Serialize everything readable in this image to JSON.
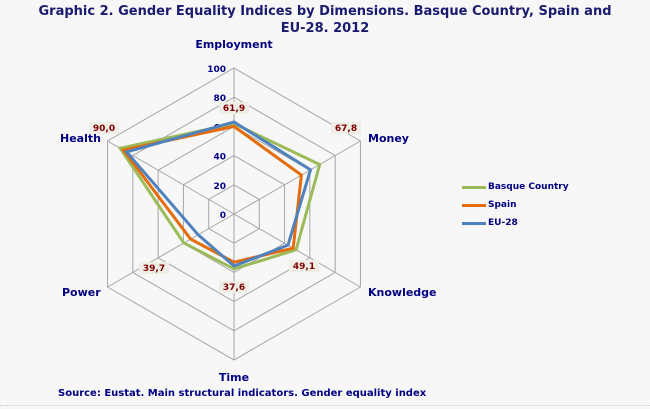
{
  "title": "Graphic 2. Gender Equality Indices by Dimensions. Basque Country, Spain and EU-28. 2012",
  "title_line1": "Graphic 2. Gender Equality Indices by Dimensions. Basque Country, Spain and",
  "title_line2": "EU-28. 2012",
  "source": "Source: Eustat. Main structural indicators. Gender equality index",
  "legend": [
    {
      "label": "Basque Country",
      "color": "#9bbb59"
    },
    {
      "label": "Spain",
      "color": "#e46c0a"
    },
    {
      "label": "EU-28",
      "color": "#4f81bd"
    }
  ],
  "axis_labels": [
    "Employment",
    "Money",
    "Knowledge",
    "Time",
    "Power",
    "Health"
  ],
  "ticks": [
    "0",
    "20",
    "40",
    "60",
    "80",
    "100"
  ],
  "data_labels": [
    "61,9",
    "67,8",
    "49,1",
    "37,6",
    "39,7",
    "90,0"
  ],
  "chart_data": {
    "type": "radar",
    "title": "Graphic 2. Gender Equality Indices by Dimensions. Basque Country, Spain and EU-28. 2012",
    "categories": [
      "Employment",
      "Money",
      "Knowledge",
      "Time",
      "Power",
      "Health"
    ],
    "series": [
      {
        "name": "Basque Country",
        "color": "#9bbb59",
        "values": [
          61.9,
          67.8,
          49.1,
          37.6,
          39.7,
          90.0
        ]
      },
      {
        "name": "Spain",
        "color": "#e46c0a",
        "values": [
          60.0,
          53.3,
          46.8,
          33.0,
          34.3,
          87.5
        ]
      },
      {
        "name": "EU-28",
        "color": "#4f81bd",
        "values": [
          63.0,
          60.5,
          42.7,
          35.6,
          28.4,
          85.0
        ]
      }
    ],
    "data_labels_series": "Basque Country",
    "rlim": [
      0,
      100
    ],
    "ticks": [
      0,
      20,
      40,
      60,
      80,
      100
    ],
    "legend_position": "right",
    "source": "Source: Eustat. Main structural indicators. Gender equality index"
  }
}
